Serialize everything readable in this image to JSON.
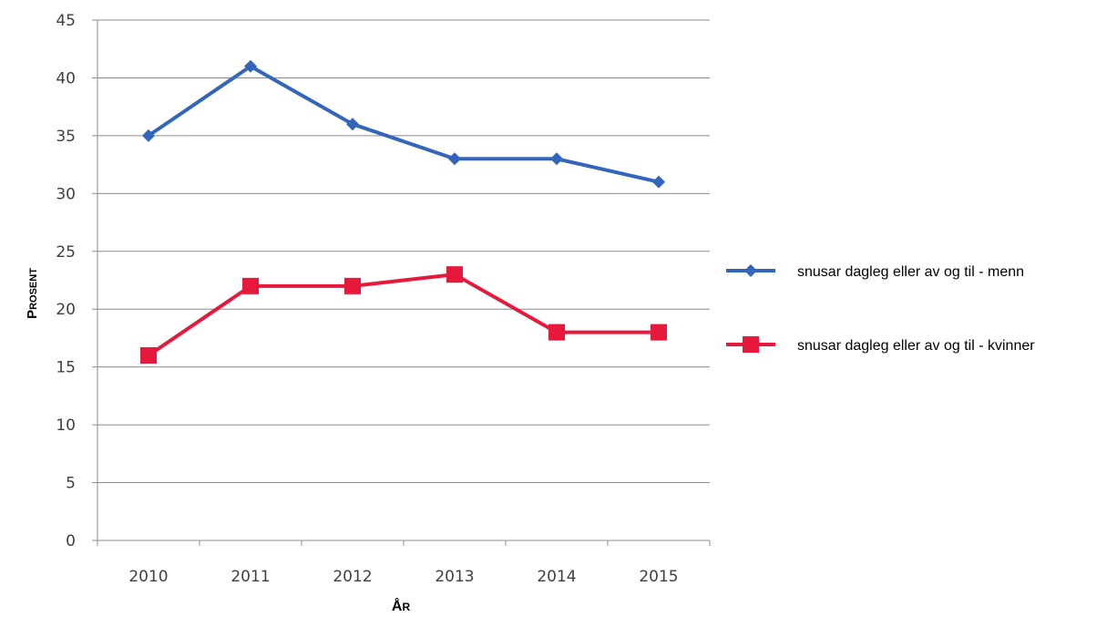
{
  "chart_data": {
    "type": "line",
    "categories": [
      "2010",
      "2011",
      "2012",
      "2013",
      "2014",
      "2015"
    ],
    "series": [
      {
        "name": "snusar dagleg eller av og til - menn",
        "values": [
          35,
          41,
          36,
          33,
          33,
          31
        ],
        "color": "#3366bb",
        "marker": "diamond"
      },
      {
        "name": "snusar dagleg eller av og til - kvinner",
        "values": [
          16,
          22,
          22,
          23,
          18,
          18
        ],
        "color": "#e6193c",
        "marker": "square"
      }
    ],
    "xlabel": "År",
    "ylabel": "Prosent",
    "ylim": [
      0,
      45
    ],
    "yticks": [
      0,
      5,
      10,
      15,
      20,
      25,
      30,
      35,
      40,
      45
    ],
    "grid": true,
    "legend": "right"
  }
}
